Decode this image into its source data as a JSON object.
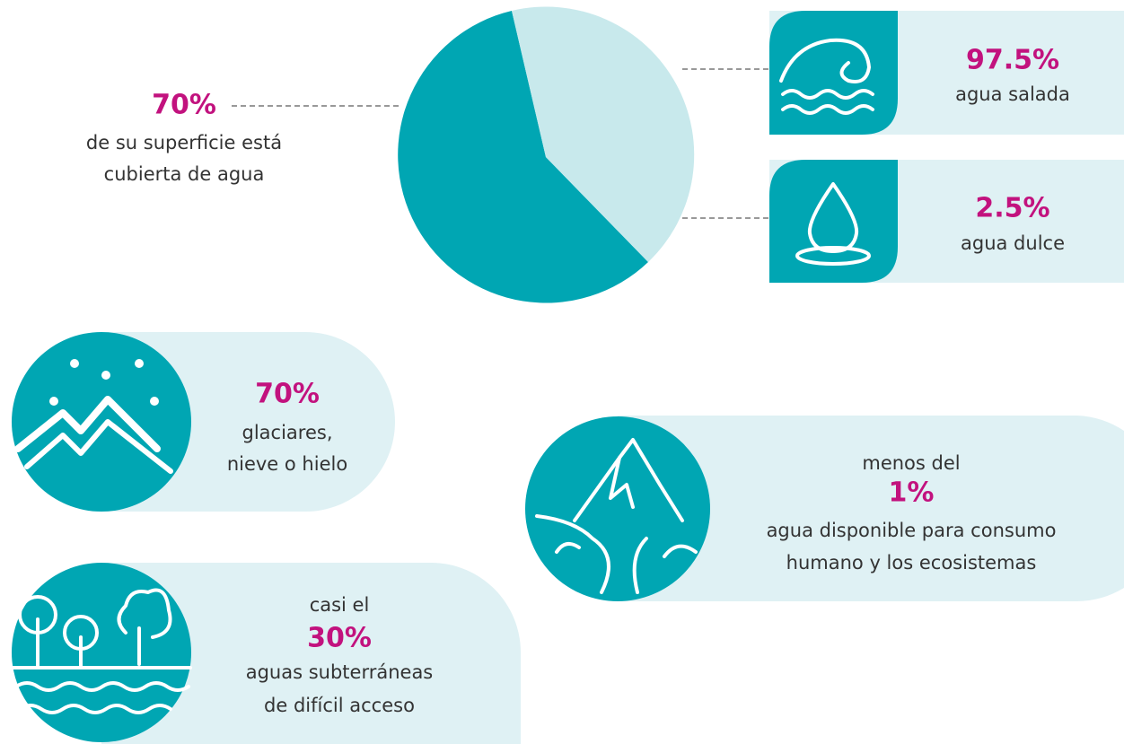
{
  "surface": {
    "percent": "70%",
    "line1": "de su superficie está",
    "line2": "cubierta de agua"
  },
  "salt": {
    "percent": "97.5%",
    "label": "agua salada"
  },
  "fresh": {
    "percent": "2.5%",
    "label": "agua dulce"
  },
  "glaciers": {
    "percent": "70%",
    "line1": "glaciares,",
    "line2": "nieve o hielo"
  },
  "ground": {
    "prefix": "casi el",
    "percent": "30%",
    "line1": "aguas subterráneas",
    "line2": "de difícil acceso"
  },
  "available": {
    "prefix": "menos del",
    "percent": "1%",
    "line1": "agua disponible para consumo",
    "line2": "humano y los ecosistemas"
  }
}
